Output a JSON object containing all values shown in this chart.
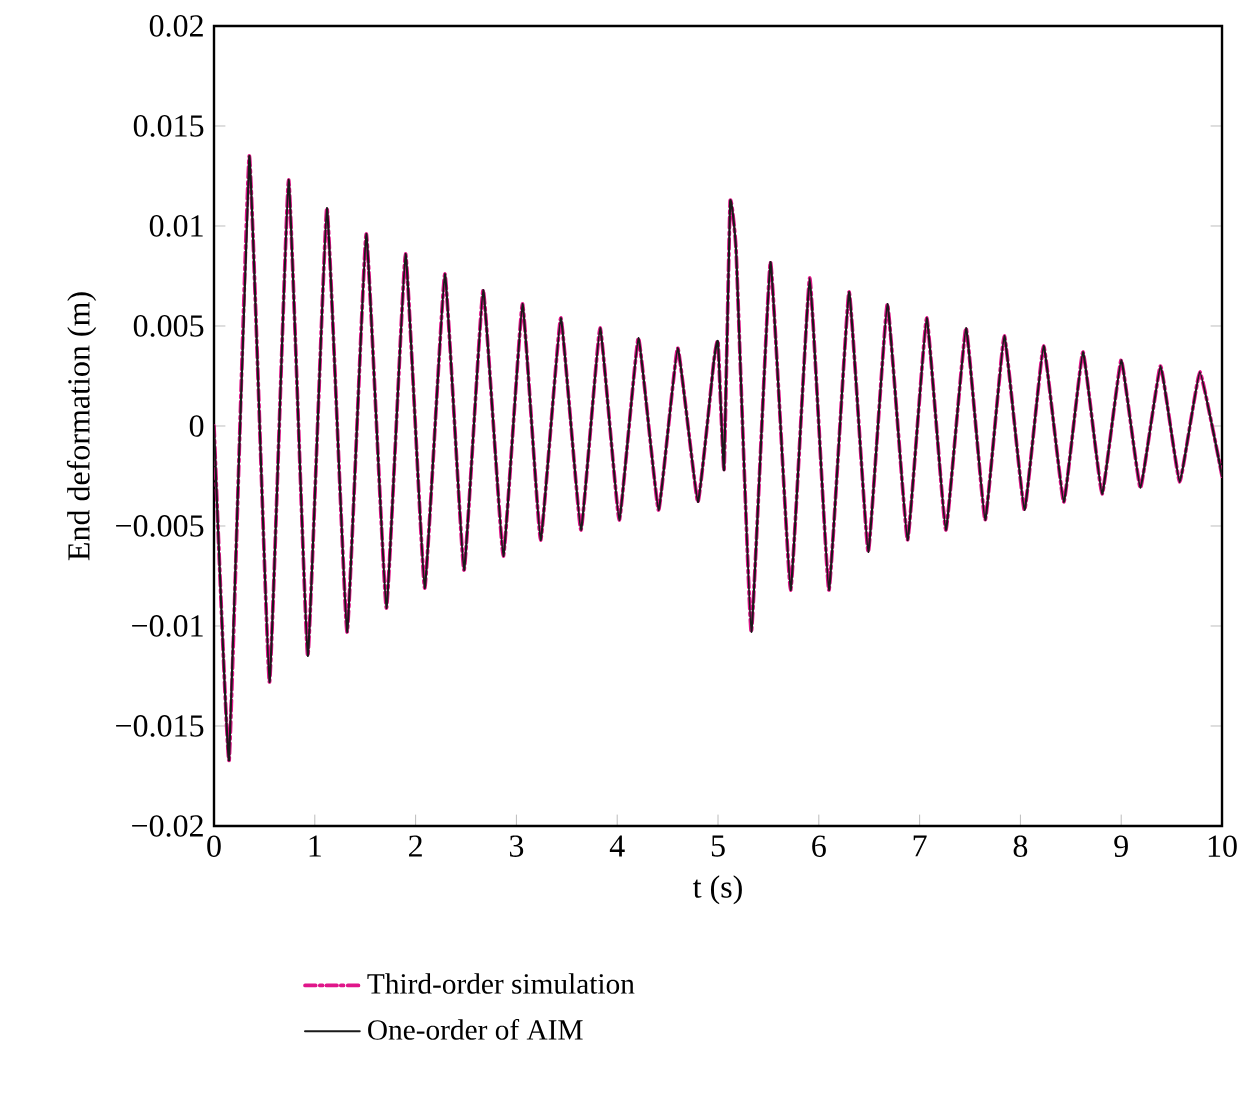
{
  "chart_data": {
    "type": "line",
    "xlabel": "t (s)",
    "ylabel": "End deformation (m)",
    "x": [
      0,
      0.15,
      0.35,
      0.55,
      0.74,
      0.93,
      1.12,
      1.32,
      1.51,
      1.71,
      1.9,
      2.09,
      2.29,
      2.48,
      2.67,
      2.87,
      3.06,
      3.24,
      3.44,
      3.64,
      3.83,
      4.02,
      4.21,
      4.41,
      4.6,
      4.8,
      4.96,
      5.0,
      5.06,
      5.12,
      5.18,
      5.33,
      5.52,
      5.72,
      5.91,
      6.1,
      6.3,
      6.49,
      6.68,
      6.88,
      7.07,
      7.26,
      7.46,
      7.65,
      7.84,
      8.04,
      8.23,
      8.43,
      8.62,
      8.81,
      9.0,
      9.19,
      9.39,
      9.58,
      9.78,
      10
    ],
    "series": [
      {
        "name": "One-order of AIM",
        "color": "#1a1a1a",
        "line_style": "solid",
        "values": [
          0,
          -0.0167,
          0.0135,
          -0.0128,
          0.0123,
          -0.0115,
          0.0109,
          -0.0103,
          0.0096,
          -0.0091,
          0.0086,
          -0.0081,
          0.0076,
          -0.0072,
          0.0068,
          -0.0065,
          0.0061,
          -0.0057,
          0.0054,
          -0.0052,
          0.0049,
          -0.0047,
          0.0044,
          -0.0042,
          0.0039,
          -0.0038,
          0.0033,
          0.0042,
          -0.0022,
          0.0112,
          0.0087,
          -0.0103,
          0.0082,
          -0.0082,
          0.0074,
          -0.0082,
          0.0067,
          -0.0063,
          0.0061,
          -0.0057,
          0.0054,
          -0.0052,
          0.0049,
          -0.0047,
          0.0045,
          -0.0042,
          0.004,
          -0.0038,
          0.0037,
          -0.0034,
          0.0033,
          -0.0031,
          0.003,
          -0.0028,
          0.0027,
          -0.0025
        ]
      },
      {
        "name": "Third-order simulation",
        "color": "#e0168a",
        "line_style": "dashdot",
        "values": [
          0,
          -0.0167,
          0.0135,
          -0.0128,
          0.0123,
          -0.0115,
          0.0109,
          -0.0103,
          0.0096,
          -0.0091,
          0.0086,
          -0.0081,
          0.0076,
          -0.0072,
          0.0068,
          -0.0065,
          0.0061,
          -0.0057,
          0.0054,
          -0.0052,
          0.0049,
          -0.0047,
          0.0044,
          -0.0042,
          0.0039,
          -0.0038,
          0.0033,
          0.0042,
          -0.0022,
          0.0112,
          0.0087,
          -0.0103,
          0.0082,
          -0.0082,
          0.0074,
          -0.0082,
          0.0067,
          -0.0063,
          0.0061,
          -0.0057,
          0.0054,
          -0.0052,
          0.0049,
          -0.0047,
          0.0045,
          -0.0042,
          0.004,
          -0.0038,
          0.0037,
          -0.0034,
          0.0033,
          -0.0031,
          0.003,
          -0.0028,
          0.0027,
          -0.0025
        ]
      }
    ],
    "xlim": [
      0,
      10
    ],
    "xticks": [
      0,
      1,
      2,
      3,
      4,
      5,
      6,
      7,
      8,
      9,
      10
    ],
    "ylim": [
      -0.02,
      0.02
    ],
    "yticks": [
      {
        "value": -0.02,
        "label": "−0.02"
      },
      {
        "value": -0.015,
        "label": "−0.015"
      },
      {
        "value": -0.01,
        "label": "−0.01"
      },
      {
        "value": -0.005,
        "label": "−0.005"
      },
      0,
      0.005,
      0.01,
      0.015,
      0.02
    ],
    "legend": "bottom",
    "grid": false,
    "marker": "none"
  }
}
